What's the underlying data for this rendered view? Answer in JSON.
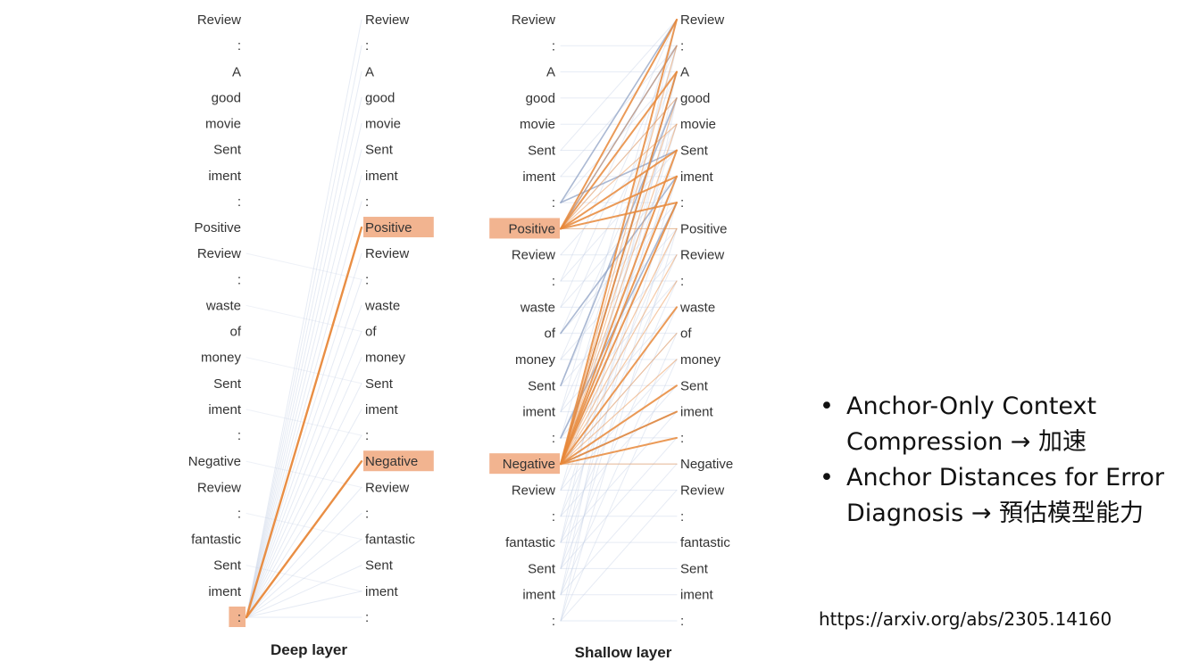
{
  "diagram": {
    "left_column_tokens": [
      "Review",
      ":",
      "A",
      "good",
      "movie",
      "Sent",
      "iment",
      ":",
      "Positive",
      "Review",
      ":",
      "waste",
      "of",
      "money",
      "Sent",
      "iment",
      ":",
      "Negative",
      "Review",
      ":",
      "fantastic",
      "Sent",
      "iment",
      ":"
    ],
    "right_column_tokens": [
      "Review",
      ":",
      "A",
      "good",
      "movie",
      "Sent",
      "iment",
      ":",
      "Positive",
      "Review",
      ":",
      "waste",
      "of",
      "money",
      "Sent",
      "iment",
      ":",
      "Negative",
      "Review",
      ":",
      "fantastic",
      "Sent",
      "iment",
      ":"
    ],
    "deep_panel": {
      "caption": "Deep layer",
      "highlighted_source": [
        23
      ],
      "highlighted_target": [
        8,
        17
      ]
    },
    "shallow_panel": {
      "caption": "Shallow layer",
      "highlighted_source": [
        8,
        17
      ],
      "highlighted_target": []
    },
    "colors": {
      "strong_line": "#e8883a",
      "faint_line": "#c8d2e6",
      "highlight_fill": "#f2b490",
      "blue_line": "#8fa2c4"
    }
  },
  "bullets": [
    "Anchor-Only Context Compression → 加速",
    "Anchor Distances for Error Diagnosis → 預估模型能力"
  ],
  "link": "https://arxiv.org/abs/2305.14160"
}
